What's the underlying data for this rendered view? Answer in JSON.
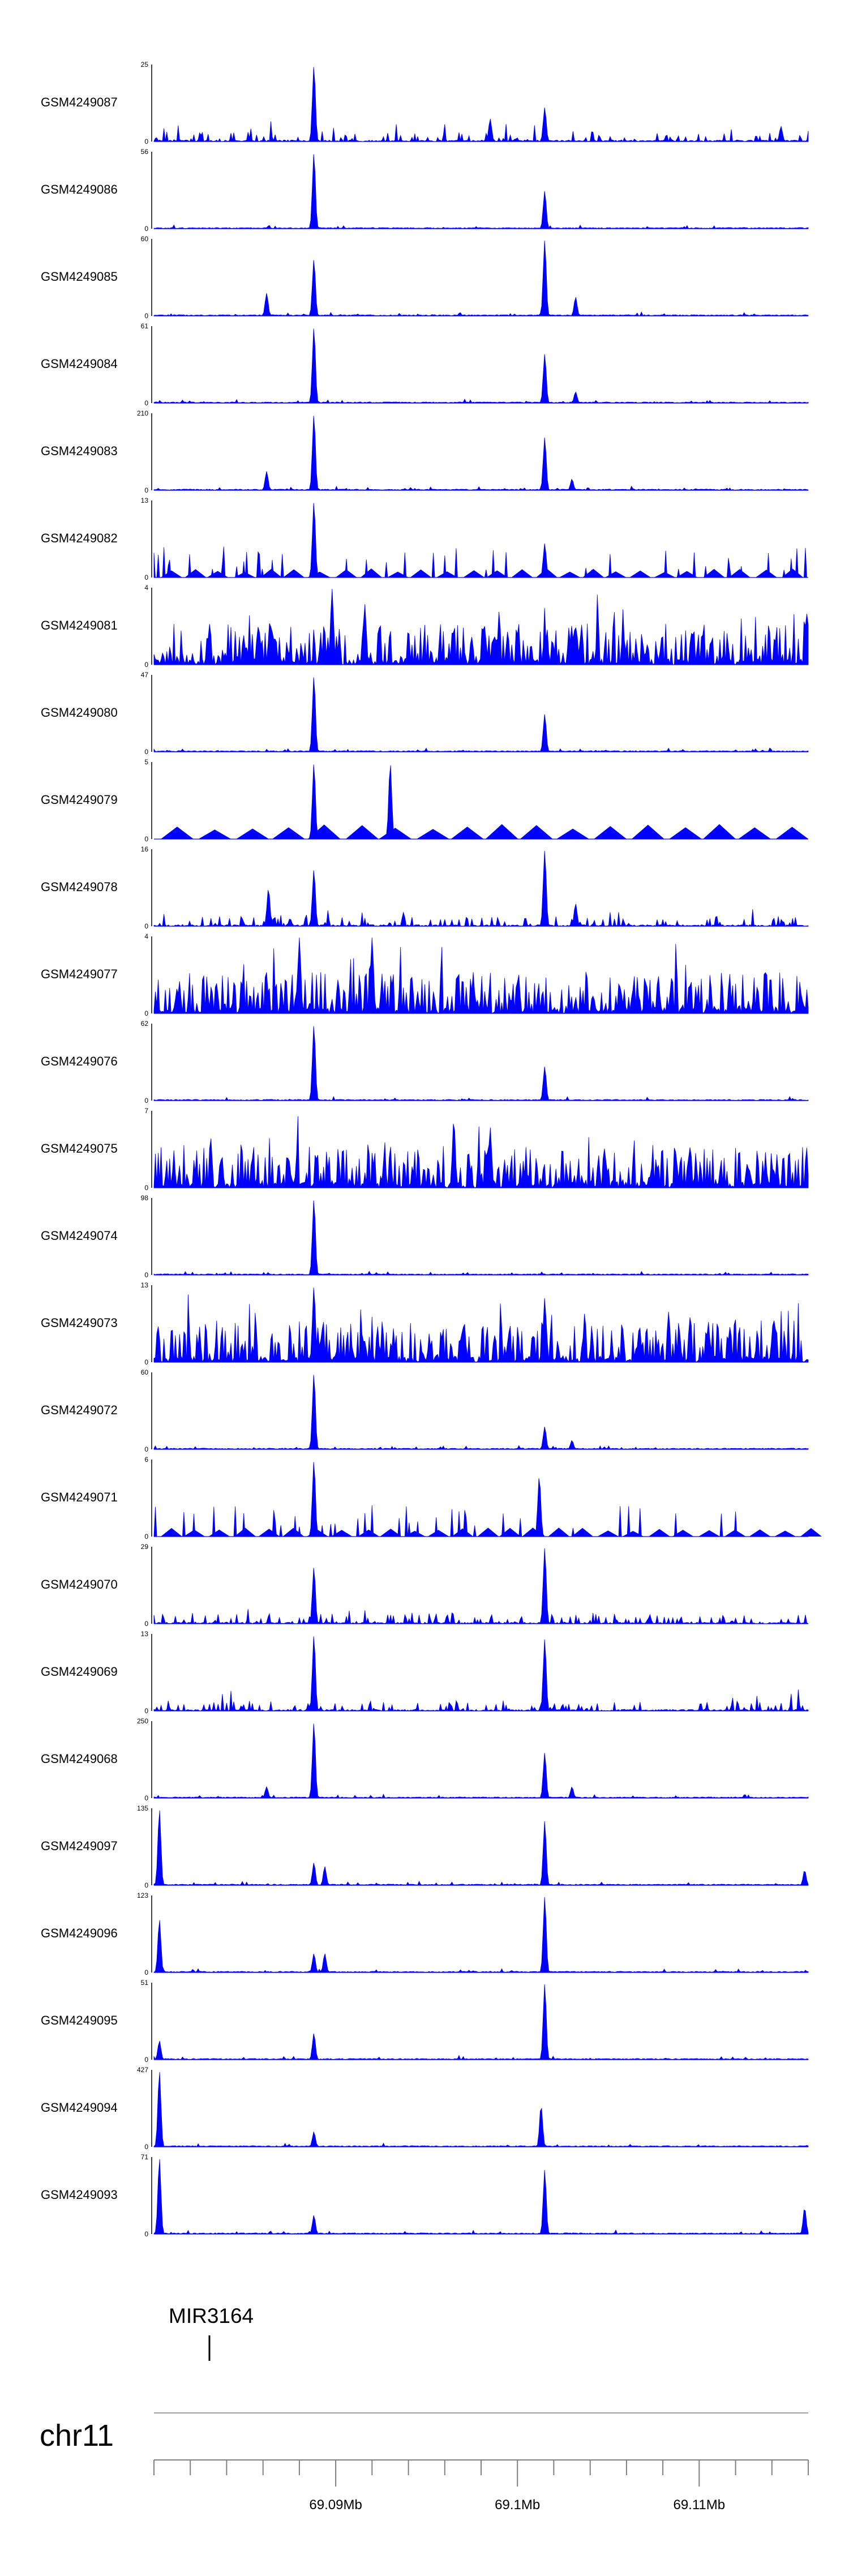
{
  "chart_data": {
    "type": "area",
    "color": "#0000ff",
    "region": {
      "chrom": "chr11",
      "start": 69080000,
      "end": 69116000
    },
    "x_ticks": [
      {
        "value": 69090000,
        "label": "69.09Mb"
      },
      {
        "value": 69100000,
        "label": "69.1Mb"
      },
      {
        "value": 69110000,
        "label": "69.11Mb"
      }
    ],
    "genes": [
      {
        "name": "MIR3164",
        "position": 69083000
      }
    ],
    "tracks": [
      {
        "name": "GSM4249087",
        "ymax": 25,
        "pattern": "noisy",
        "peaks": [
          {
            "x": 69088800,
            "h": 1.0
          },
          {
            "x": 69098500,
            "h": 0.3
          },
          {
            "x": 69101500,
            "h": 0.45
          },
          {
            "x": 69114500,
            "h": 0.2
          }
        ]
      },
      {
        "name": "GSM4249086",
        "ymax": 56,
        "pattern": "quiet",
        "peaks": [
          {
            "x": 69088800,
            "h": 1.0
          },
          {
            "x": 69101500,
            "h": 0.5
          }
        ]
      },
      {
        "name": "GSM4249085",
        "ymax": 60,
        "pattern": "quiet",
        "peaks": [
          {
            "x": 69086200,
            "h": 0.3
          },
          {
            "x": 69088800,
            "h": 0.75
          },
          {
            "x": 69101500,
            "h": 1.0
          },
          {
            "x": 69103200,
            "h": 0.25
          }
        ]
      },
      {
        "name": "GSM4249084",
        "ymax": 61,
        "pattern": "quiet",
        "peaks": [
          {
            "x": 69088800,
            "h": 1.0
          },
          {
            "x": 69101500,
            "h": 0.65
          },
          {
            "x": 69103200,
            "h": 0.15
          }
        ]
      },
      {
        "name": "GSM4249083",
        "ymax": 210,
        "pattern": "quiet",
        "peaks": [
          {
            "x": 69086200,
            "h": 0.25
          },
          {
            "x": 69088800,
            "h": 1.0
          },
          {
            "x": 69101500,
            "h": 0.7
          },
          {
            "x": 69103000,
            "h": 0.15
          }
        ]
      },
      {
        "name": "GSM4249082",
        "ymax": 13,
        "pattern": "sparse",
        "peaks": [
          {
            "x": 69088800,
            "h": 1.0
          },
          {
            "x": 69101500,
            "h": 0.45
          }
        ]
      },
      {
        "name": "GSM4249081",
        "ymax": 4,
        "pattern": "dense",
        "peaks": [
          {
            "x": 69089800,
            "h": 1.0
          },
          {
            "x": 69091600,
            "h": 0.8
          }
        ]
      },
      {
        "name": "GSM4249080",
        "ymax": 47,
        "pattern": "quiet",
        "peaks": [
          {
            "x": 69088800,
            "h": 1.0
          },
          {
            "x": 69101500,
            "h": 0.5
          }
        ]
      },
      {
        "name": "GSM4249079",
        "ymax": 5,
        "pattern": "binned",
        "peaks": [
          {
            "x": 69088800,
            "h": 1.0
          },
          {
            "x": 69093000,
            "h": 1.0
          }
        ]
      },
      {
        "name": "GSM4249078",
        "ymax": 16,
        "pattern": "noisy",
        "peaks": [
          {
            "x": 69086300,
            "h": 0.5
          },
          {
            "x": 69088800,
            "h": 0.75
          },
          {
            "x": 69101500,
            "h": 1.0
          },
          {
            "x": 69103200,
            "h": 0.3
          }
        ]
      },
      {
        "name": "GSM4249077",
        "ymax": 4,
        "pattern": "dense",
        "peaks": [
          {
            "x": 69088000,
            "h": 1.0
          },
          {
            "x": 69092000,
            "h": 1.0
          }
        ]
      },
      {
        "name": "GSM4249076",
        "ymax": 62,
        "pattern": "quiet",
        "peaks": [
          {
            "x": 69088800,
            "h": 1.0
          },
          {
            "x": 69101500,
            "h": 0.45
          }
        ]
      },
      {
        "name": "GSM4249075",
        "ymax": 7,
        "pattern": "dense",
        "peaks": [
          {
            "x": 69096500,
            "h": 0.9
          },
          {
            "x": 69098500,
            "h": 0.8
          }
        ]
      },
      {
        "name": "GSM4249074",
        "ymax": 98,
        "pattern": "quiet",
        "peaks": [
          {
            "x": 69088800,
            "h": 1.0
          }
        ]
      },
      {
        "name": "GSM4249073",
        "ymax": 13,
        "pattern": "dense",
        "peaks": [
          {
            "x": 69088800,
            "h": 1.0
          },
          {
            "x": 69101500,
            "h": 0.85
          }
        ]
      },
      {
        "name": "GSM4249072",
        "ymax": 60,
        "pattern": "quiet",
        "peaks": [
          {
            "x": 69088800,
            "h": 1.0
          },
          {
            "x": 69101500,
            "h": 0.3
          },
          {
            "x": 69103000,
            "h": 0.12
          }
        ]
      },
      {
        "name": "GSM4249071",
        "ymax": 6,
        "pattern": "sparse",
        "peaks": [
          {
            "x": 69088800,
            "h": 1.0
          },
          {
            "x": 69101200,
            "h": 0.8
          }
        ]
      },
      {
        "name": "GSM4249070",
        "ymax": 29,
        "pattern": "noisy",
        "peaks": [
          {
            "x": 69088800,
            "h": 0.75
          },
          {
            "x": 69101500,
            "h": 1.0
          }
        ]
      },
      {
        "name": "GSM4249069",
        "ymax": 13,
        "pattern": "noisy",
        "peaks": [
          {
            "x": 69088800,
            "h": 1.0
          },
          {
            "x": 69101500,
            "h": 0.95
          }
        ]
      },
      {
        "name": "GSM4249068",
        "ymax": 250,
        "pattern": "quiet",
        "peaks": [
          {
            "x": 69086200,
            "h": 0.15
          },
          {
            "x": 69088800,
            "h": 1.0
          },
          {
            "x": 69101500,
            "h": 0.6
          },
          {
            "x": 69103000,
            "h": 0.15
          }
        ]
      },
      {
        "name": "GSM4249097",
        "ymax": 135,
        "pattern": "quiet",
        "peaks": [
          {
            "x": 69080300,
            "h": 1.0
          },
          {
            "x": 69088800,
            "h": 0.3
          },
          {
            "x": 69089400,
            "h": 0.25
          },
          {
            "x": 69101500,
            "h": 0.85
          },
          {
            "x": 69115800,
            "h": 0.2
          }
        ]
      },
      {
        "name": "GSM4249096",
        "ymax": 123,
        "pattern": "quiet",
        "peaks": [
          {
            "x": 69080300,
            "h": 0.7
          },
          {
            "x": 69088800,
            "h": 0.25
          },
          {
            "x": 69089400,
            "h": 0.25
          },
          {
            "x": 69101500,
            "h": 1.0
          }
        ]
      },
      {
        "name": "GSM4249095",
        "ymax": 51,
        "pattern": "quiet",
        "peaks": [
          {
            "x": 69080300,
            "h": 0.25
          },
          {
            "x": 69088800,
            "h": 0.35
          },
          {
            "x": 69101500,
            "h": 1.0
          }
        ]
      },
      {
        "name": "GSM4249094",
        "ymax": 427,
        "pattern": "quiet",
        "peaks": [
          {
            "x": 69080300,
            "h": 1.0
          },
          {
            "x": 69088800,
            "h": 0.2
          },
          {
            "x": 69101300,
            "h": 0.55
          }
        ]
      },
      {
        "name": "GSM4249093",
        "ymax": 71,
        "pattern": "quiet",
        "peaks": [
          {
            "x": 69080300,
            "h": 1.0
          },
          {
            "x": 69088800,
            "h": 0.25
          },
          {
            "x": 69101500,
            "h": 0.85
          },
          {
            "x": 69115800,
            "h": 0.35
          }
        ]
      }
    ]
  },
  "ideogram": {
    "chrom_label": "chr11"
  }
}
